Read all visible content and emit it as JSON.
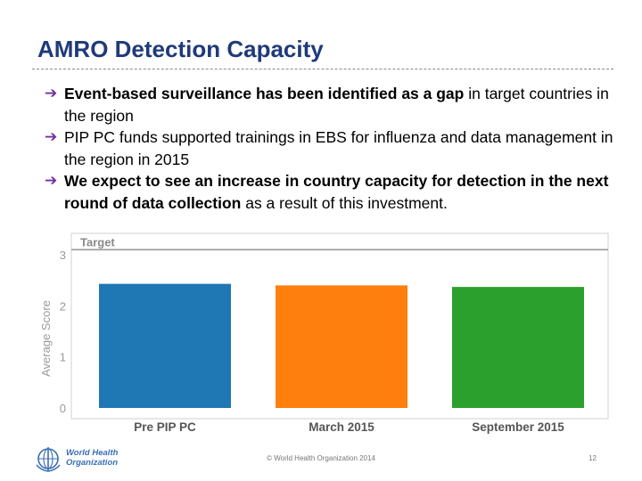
{
  "slide": {
    "title": "AMRO Detection Capacity",
    "bullets": [
      {
        "bold": "Event-based surveillance has been identified as a gap",
        "rest": " in target countries in the region"
      },
      {
        "bold": "",
        "rest": "PIP PC funds supported trainings in EBS for influenza and data management in the region in 2015"
      },
      {
        "bold": "We expect to see an increase in country capacity for detection in the next round of data collection",
        "rest": " as a result of this investment."
      }
    ],
    "arrow_glyph": "➔"
  },
  "chart_data": {
    "type": "bar",
    "categories": [
      "Pre PIP PC",
      "March 2015",
      "September 2015"
    ],
    "values": [
      2.43,
      2.4,
      2.37
    ],
    "ylabel": "Average Score",
    "yticks": [
      "0",
      "1",
      "2",
      "3"
    ],
    "ylim": [
      0,
      3.2
    ],
    "target_label": "Target",
    "target_value": 3.1,
    "colors": [
      "#1f77b4",
      "#ff7f0e",
      "#2ca02c"
    ],
    "grid": false
  },
  "footer": {
    "org_line1": "World Health",
    "org_line2": "Organization",
    "copyright": "© World Health Organization 2014",
    "page_number": "12"
  }
}
